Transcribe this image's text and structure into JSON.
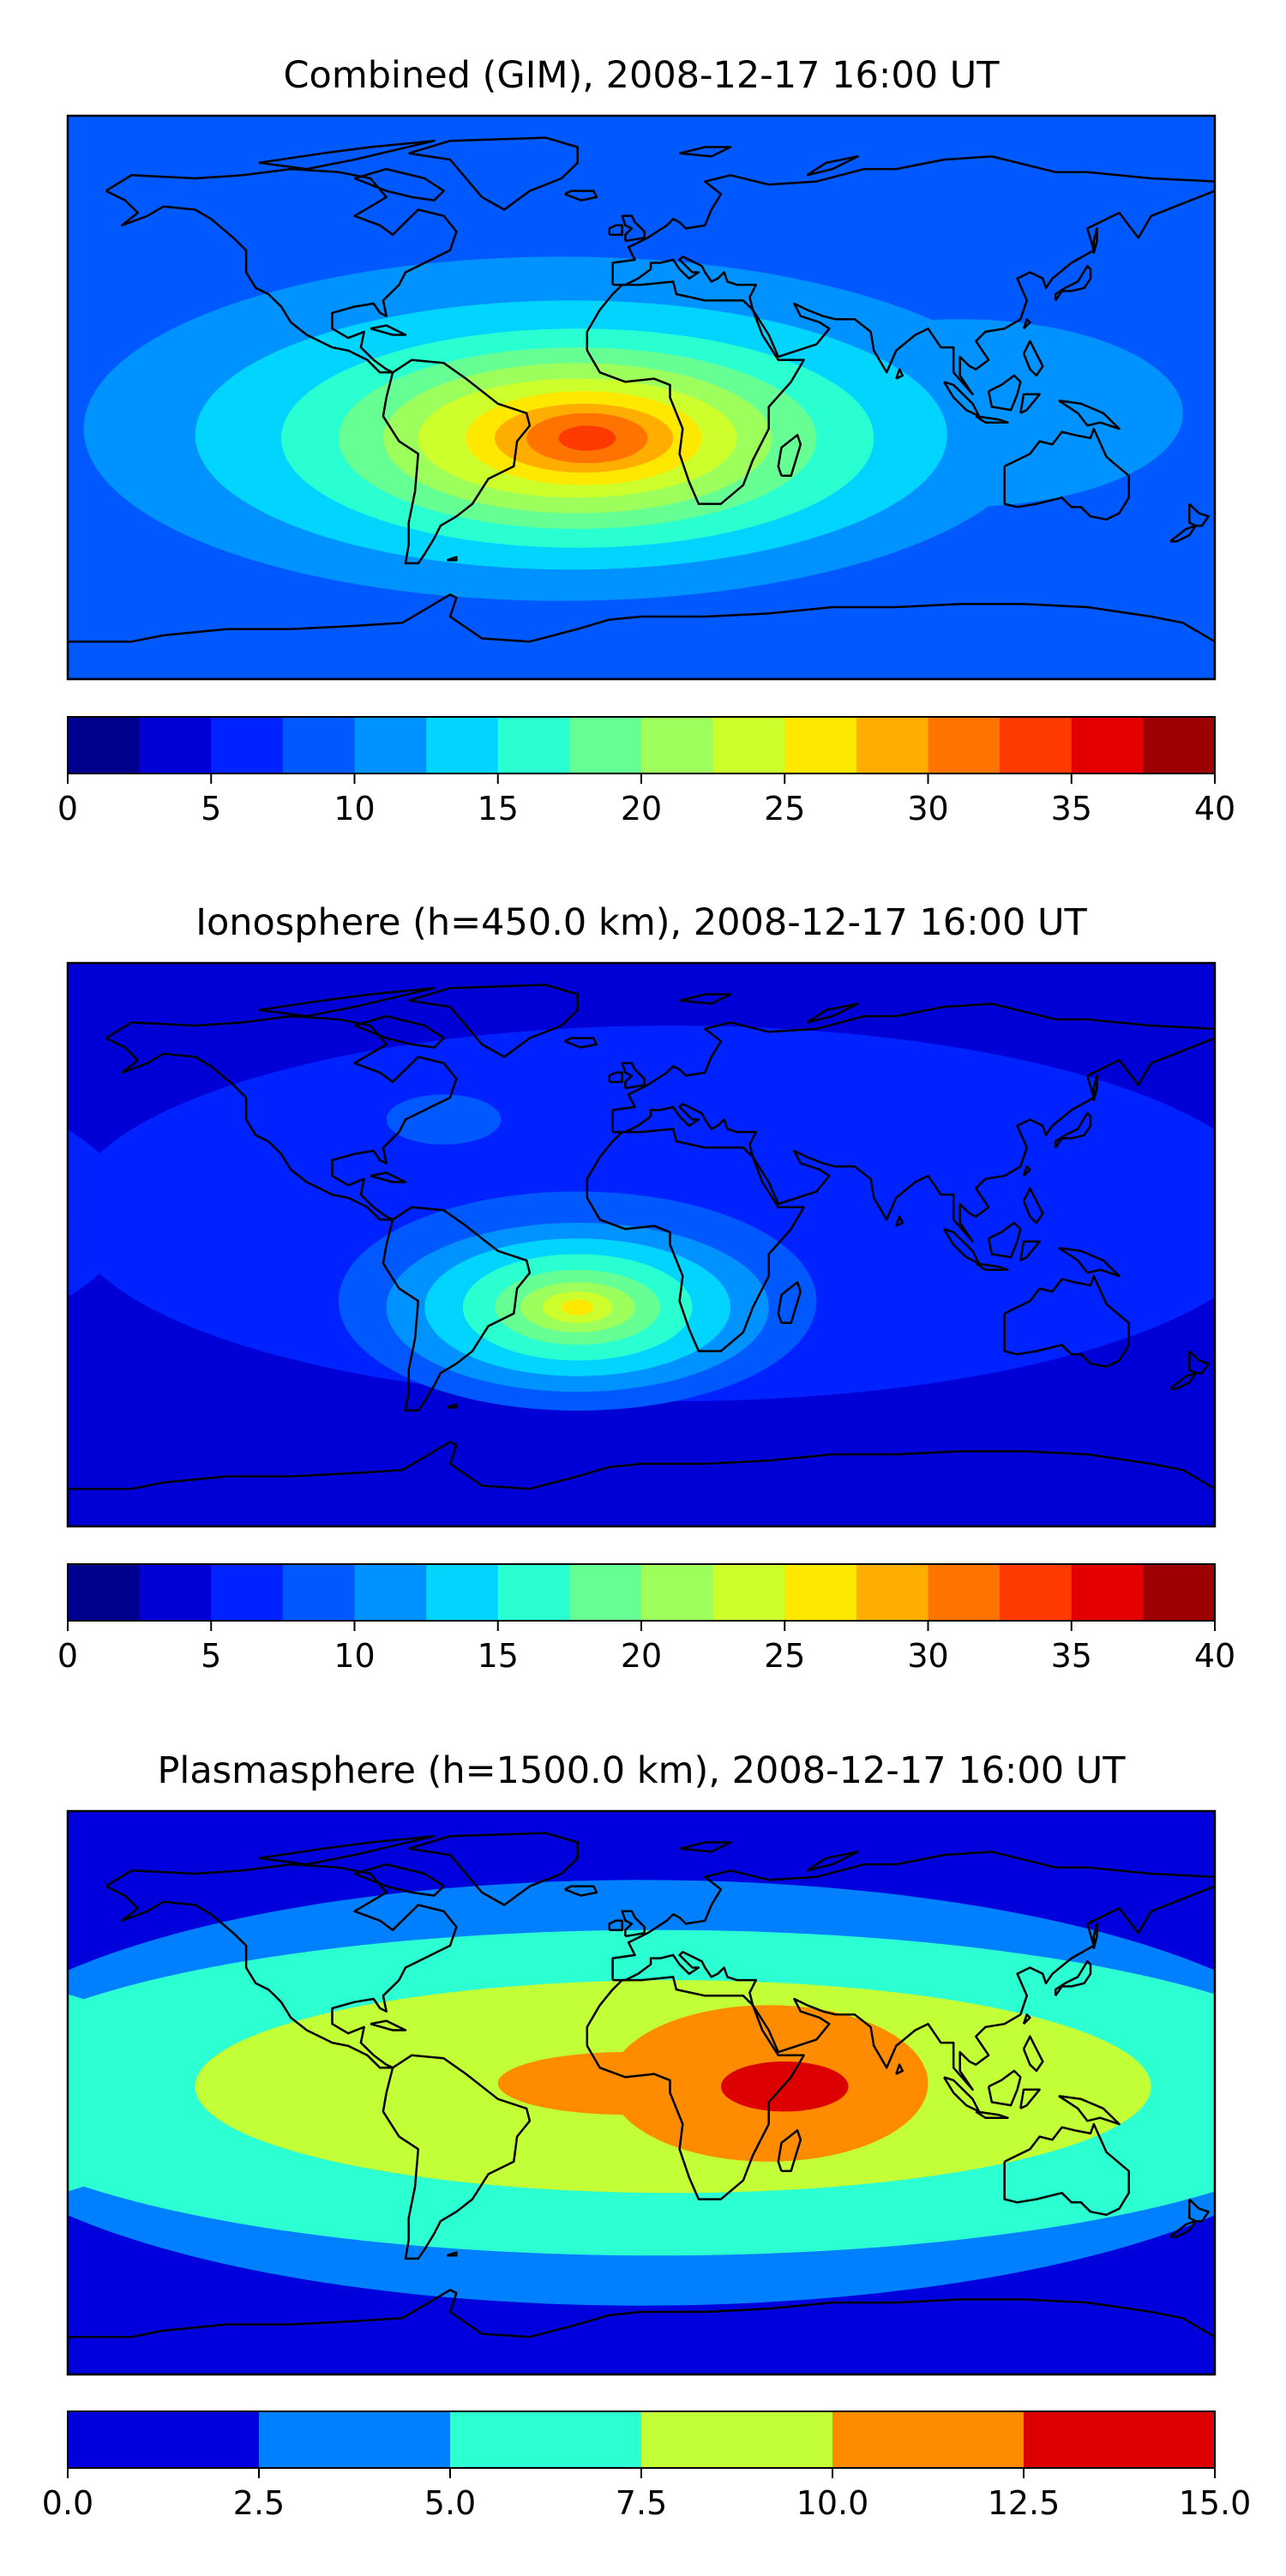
{
  "chart_data": [
    {
      "type": "heatmap",
      "title": "Combined (GIM), 2008-12-17 16:00 UT",
      "colorbar": {
        "levels": [
          0,
          2.5,
          5,
          7.5,
          10,
          12.5,
          15,
          17.5,
          20,
          22.5,
          25,
          27.5,
          30,
          32.5,
          35,
          37.5,
          40
        ],
        "colors": [
          "#00008f",
          "#0000d6",
          "#0022ff",
          "#0058ff",
          "#0092ff",
          "#00d4ff",
          "#2affd2",
          "#66ff94",
          "#9cff5c",
          "#ccff2c",
          "#ffe800",
          "#ffae00",
          "#ff7400",
          "#ff3a00",
          "#e50000",
          "#9c0000"
        ],
        "ticks": [
          0,
          5,
          10,
          15,
          20,
          25,
          30,
          35,
          40
        ],
        "tick_labels": [
          "0",
          "5",
          "10",
          "15",
          "20",
          "25",
          "30",
          "35",
          "40"
        ]
      },
      "background_level": 3,
      "features": [
        {
          "level": 4,
          "lon": -25,
          "lat": -10,
          "rx": 150,
          "ry": 55
        },
        {
          "level": 4,
          "lon": 100,
          "lat": -5,
          "rx": 70,
          "ry": 30
        },
        {
          "level": 5,
          "lon": -22,
          "lat": -12,
          "rx": 118,
          "ry": 43
        },
        {
          "level": 6,
          "lon": -20,
          "lat": -13,
          "rx": 93,
          "ry": 35
        },
        {
          "level": 7,
          "lon": -20,
          "lat": -13,
          "rx": 75,
          "ry": 29
        },
        {
          "level": 8,
          "lon": -20,
          "lat": -13,
          "rx": 61,
          "ry": 24
        },
        {
          "level": 9,
          "lon": -20,
          "lat": -13,
          "rx": 50,
          "ry": 19
        },
        {
          "level": 10,
          "lon": -18,
          "lat": -13,
          "rx": 37,
          "ry": 15
        },
        {
          "level": 11,
          "lon": -18,
          "lat": -13,
          "rx": 28,
          "ry": 11
        },
        {
          "level": 12,
          "lon": -17,
          "lat": -13,
          "rx": 19,
          "ry": 8
        },
        {
          "level": 13,
          "lon": -17,
          "lat": -13,
          "rx": 9,
          "ry": 4
        }
      ]
    },
    {
      "type": "heatmap",
      "title": "Ionosphere  (h=450.0 km), 2008-12-17 16:00 UT",
      "colorbar": {
        "levels": [
          0,
          2.5,
          5,
          7.5,
          10,
          12.5,
          15,
          17.5,
          20,
          22.5,
          25,
          27.5,
          30,
          32.5,
          35,
          37.5,
          40
        ],
        "colors": [
          "#00008f",
          "#0000d6",
          "#0022ff",
          "#0058ff",
          "#0092ff",
          "#00d4ff",
          "#2affd2",
          "#66ff94",
          "#9cff5c",
          "#ccff2c",
          "#ffe800",
          "#ffae00",
          "#ff7400",
          "#ff3a00",
          "#e50000",
          "#9c0000"
        ],
        "ticks": [
          0,
          5,
          10,
          15,
          20,
          25,
          30,
          35,
          40
        ],
        "tick_labels": [
          "0",
          "5",
          "10",
          "15",
          "20",
          "25",
          "30",
          "35",
          "40"
        ]
      },
      "background_level": 1,
      "features": [
        {
          "level": 2,
          "lon": 10,
          "lat": 10,
          "rx": 190,
          "ry": 60
        },
        {
          "level": 3,
          "lon": -20,
          "lat": -18,
          "rx": 75,
          "ry": 35
        },
        {
          "level": 3,
          "lon": -62,
          "lat": 40,
          "rx": 18,
          "ry": 8
        },
        {
          "level": 4,
          "lon": -20,
          "lat": -20,
          "rx": 60,
          "ry": 27
        },
        {
          "level": 5,
          "lon": -20,
          "lat": -20,
          "rx": 48,
          "ry": 22
        },
        {
          "level": 6,
          "lon": -20,
          "lat": -20,
          "rx": 36,
          "ry": 17
        },
        {
          "level": 7,
          "lon": -20,
          "lat": -20,
          "rx": 26,
          "ry": 12
        },
        {
          "level": 8,
          "lon": -20,
          "lat": -20,
          "rx": 18,
          "ry": 8
        },
        {
          "level": 9,
          "lon": -20,
          "lat": -20,
          "rx": 11,
          "ry": 5
        },
        {
          "level": 10,
          "lon": -20,
          "lat": -20,
          "rx": 5,
          "ry": 2.5
        }
      ]
    },
    {
      "type": "heatmap",
      "title": "Plasmasphere (h=1500.0 km), 2008-12-17 16:00 UT",
      "colorbar": {
        "levels": [
          0,
          2.5,
          5,
          7.5,
          10,
          12.5,
          15
        ],
        "colors": [
          "#0000dd",
          "#0080ff",
          "#2cffd2",
          "#c2ff36",
          "#ff8c00",
          "#dd0000"
        ],
        "ticks": [
          0,
          2.5,
          5,
          7.5,
          10,
          12.5,
          15
        ],
        "tick_labels": [
          "0.0",
          "2.5",
          "5.0",
          "7.5",
          "10.0",
          "12.5",
          "15.0"
        ]
      },
      "background_level": 0,
      "features": [
        {
          "level": 1,
          "lon": 0,
          "lat": 0,
          "rx": 220,
          "ry": 68
        },
        {
          "level": 2,
          "lon": 5,
          "lat": 0,
          "rx": 220,
          "ry": 52
        },
        {
          "level": 3,
          "lon": 10,
          "lat": 2,
          "rx": 150,
          "ry": 34
        },
        {
          "level": 4,
          "lon": 40,
          "lat": 3,
          "rx": 50,
          "ry": 25
        },
        {
          "level": 4,
          "lon": -5,
          "lat": 3,
          "rx": 40,
          "ry": 10
        },
        {
          "level": 5,
          "lon": 45,
          "lat": 2,
          "rx": 20,
          "ry": 8
        }
      ]
    }
  ]
}
